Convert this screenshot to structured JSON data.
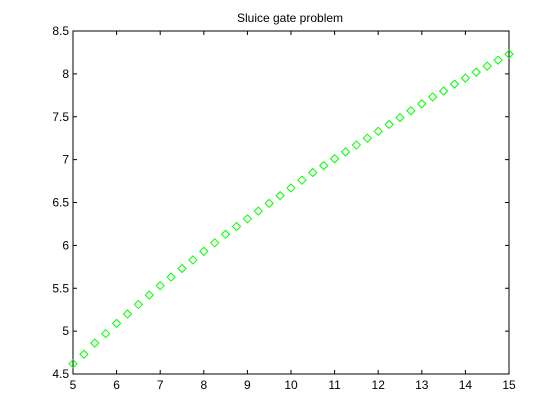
{
  "chart_data": {
    "type": "scatter",
    "title": "Sluice gate problem",
    "xlabel": "",
    "ylabel": "",
    "xlim": [
      5,
      15
    ],
    "ylim": [
      4.5,
      8.5
    ],
    "xticks": [
      5,
      6,
      7,
      8,
      9,
      10,
      11,
      12,
      13,
      14,
      15
    ],
    "yticks": [
      4.5,
      5,
      5.5,
      6,
      6.5,
      7,
      7.5,
      8,
      8.5
    ],
    "xtick_labels": [
      "5",
      "6",
      "7",
      "8",
      "9",
      "10",
      "11",
      "12",
      "13",
      "14",
      "15"
    ],
    "ytick_labels": [
      "4.5",
      "5",
      "5.5",
      "6",
      "6.5",
      "7",
      "7.5",
      "8",
      "8.5"
    ],
    "grid": false,
    "series": [
      {
        "marker": "diamond",
        "color": "#00ff00",
        "x": [
          5.0,
          5.25,
          5.5,
          5.75,
          6.0,
          6.25,
          6.5,
          6.75,
          7.0,
          7.25,
          7.5,
          7.75,
          8.0,
          8.25,
          8.5,
          8.75,
          9.0,
          9.25,
          9.5,
          9.75,
          10.0,
          10.25,
          10.5,
          10.75,
          11.0,
          11.25,
          11.5,
          11.75,
          12.0,
          12.25,
          12.5,
          12.75,
          13.0,
          13.25,
          13.5,
          13.75,
          14.0,
          14.25,
          14.5,
          14.75,
          15.0
        ],
        "y": [
          4.62,
          4.73,
          4.86,
          4.97,
          5.09,
          5.2,
          5.31,
          5.42,
          5.53,
          5.63,
          5.73,
          5.83,
          5.93,
          6.03,
          6.13,
          6.22,
          6.31,
          6.4,
          6.49,
          6.58,
          6.67,
          6.76,
          6.85,
          6.93,
          7.01,
          7.09,
          7.17,
          7.25,
          7.33,
          7.41,
          7.49,
          7.57,
          7.65,
          7.73,
          7.8,
          7.88,
          7.95,
          8.02,
          8.09,
          8.16,
          8.23
        ]
      }
    ]
  }
}
